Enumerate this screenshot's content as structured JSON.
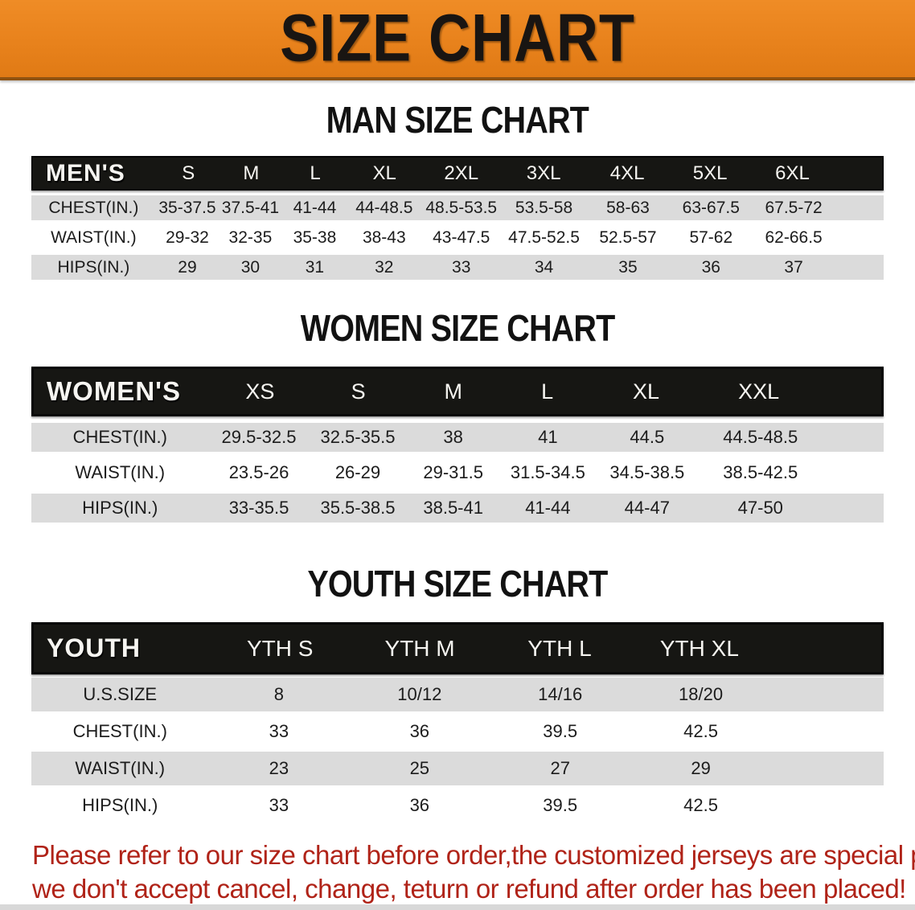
{
  "banner": {
    "title": "SIZE CHART",
    "bg_color": "#e8821c",
    "text_color": "#191512"
  },
  "sections": [
    {
      "heading": "MAN SIZE CHART",
      "header_label": "MEN'S",
      "columns": [
        "S",
        "M",
        "L",
        "XL",
        "2XL",
        "3XL",
        "4XL",
        "5XL",
        "6XL"
      ],
      "rows": [
        {
          "label": "CHEST(IN.)",
          "values": [
            "35-37.5",
            "37.5-41",
            "41-44",
            "44-48.5",
            "48.5-53.5",
            "53.5-58",
            "58-63",
            "63-67.5",
            "67.5-72"
          ]
        },
        {
          "label": "WAIST(IN.)",
          "values": [
            "29-32",
            "32-35",
            "35-38",
            "38-43",
            "43-47.5",
            "47.5-52.5",
            "52.5-57",
            "57-62",
            "62-66.5"
          ]
        },
        {
          "label": "HIPS(IN.)",
          "values": [
            "29",
            "30",
            "31",
            "32",
            "33",
            "34",
            "35",
            "36",
            "37"
          ]
        }
      ]
    },
    {
      "heading": "WOMEN SIZE CHART",
      "header_label": "WOMEN'S",
      "columns": [
        "XS",
        "S",
        "M",
        "L",
        "XL",
        "XXL"
      ],
      "rows": [
        {
          "label": "CHEST(IN.)",
          "values": [
            "29.5-32.5",
            "32.5-35.5",
            "38",
            "41",
            "44.5",
            "44.5-48.5"
          ]
        },
        {
          "label": "WAIST(IN.)",
          "values": [
            "23.5-26",
            "26-29",
            "29-31.5",
            "31.5-34.5",
            "34.5-38.5",
            "38.5-42.5"
          ]
        },
        {
          "label": "HIPS(IN.)",
          "values": [
            "33-35.5",
            "35.5-38.5",
            "38.5-41",
            "41-44",
            "44-47",
            "47-50"
          ]
        }
      ]
    },
    {
      "heading": "YOUTH SIZE CHART",
      "header_label": "YOUTH",
      "columns": [
        "YTH S",
        "YTH M",
        "YTH L",
        "YTH XL"
      ],
      "rows": [
        {
          "label": "U.S.SIZE",
          "values": [
            "8",
            "10/12",
            "14/16",
            "18/20"
          ]
        },
        {
          "label": "CHEST(IN.)",
          "values": [
            "33",
            "36",
            "39.5",
            "42.5"
          ]
        },
        {
          "label": "WAIST(IN.)",
          "values": [
            "23",
            "25",
            "27",
            "29"
          ]
        },
        {
          "label": "HIPS(IN.)",
          "values": [
            "33",
            "36",
            "39.5",
            "42.5"
          ]
        }
      ]
    }
  ],
  "disclaimer": {
    "line1": "Please refer to our size chart before order,the customized jerseys are special products,",
    "line2": "we don't accept cancel, change, teturn or refund after order has been placed!",
    "text_color": "#b02318"
  },
  "colors": {
    "banner_orange": "#e8821c",
    "banner_edge": "#8f5210",
    "table_header_black": "#161613",
    "row_gray": "#dbdbdb",
    "disclaimer_red": "#b02318"
  }
}
